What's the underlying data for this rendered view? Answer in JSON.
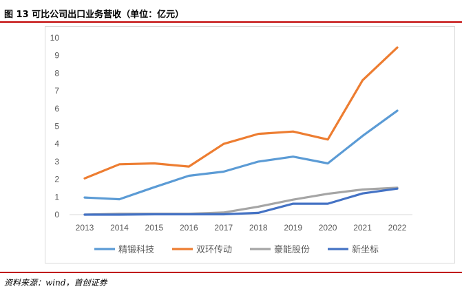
{
  "figure": {
    "title": "图 13 可比公司出口业务营收（单位：亿元）",
    "source": "资料来源：wind，首创证券"
  },
  "chart_data": {
    "type": "line",
    "title": "",
    "xlabel": "",
    "ylabel": "",
    "categories": [
      "2013",
      "2014",
      "2015",
      "2016",
      "2017",
      "2018",
      "2019",
      "2020",
      "2021",
      "2022"
    ],
    "ylim": [
      0,
      10
    ],
    "yticks": [
      "0",
      "1",
      "2",
      "3",
      "4",
      "5",
      "6",
      "7",
      "8",
      "9",
      "10"
    ],
    "grid": false,
    "legend": "bottom",
    "series": [
      {
        "name": "精锻科技",
        "color": "#5b9bd5",
        "values": [
          0.97,
          0.87,
          1.55,
          2.2,
          2.43,
          3.0,
          3.28,
          2.9,
          4.45,
          5.88
        ]
      },
      {
        "name": "双环传动",
        "color": "#ed7d31",
        "values": [
          2.05,
          2.85,
          2.9,
          2.72,
          4.0,
          4.57,
          4.7,
          4.25,
          7.6,
          9.45
        ]
      },
      {
        "name": "豪能股份",
        "color": "#a5a5a5",
        "values": [
          0.0,
          0.05,
          0.05,
          0.05,
          0.12,
          0.45,
          0.85,
          1.18,
          1.42,
          1.52
        ]
      },
      {
        "name": "新坐标",
        "color": "#4472c4",
        "values": [
          0.0,
          0.0,
          0.02,
          0.02,
          0.02,
          0.1,
          0.62,
          0.62,
          1.2,
          1.47
        ]
      }
    ]
  }
}
